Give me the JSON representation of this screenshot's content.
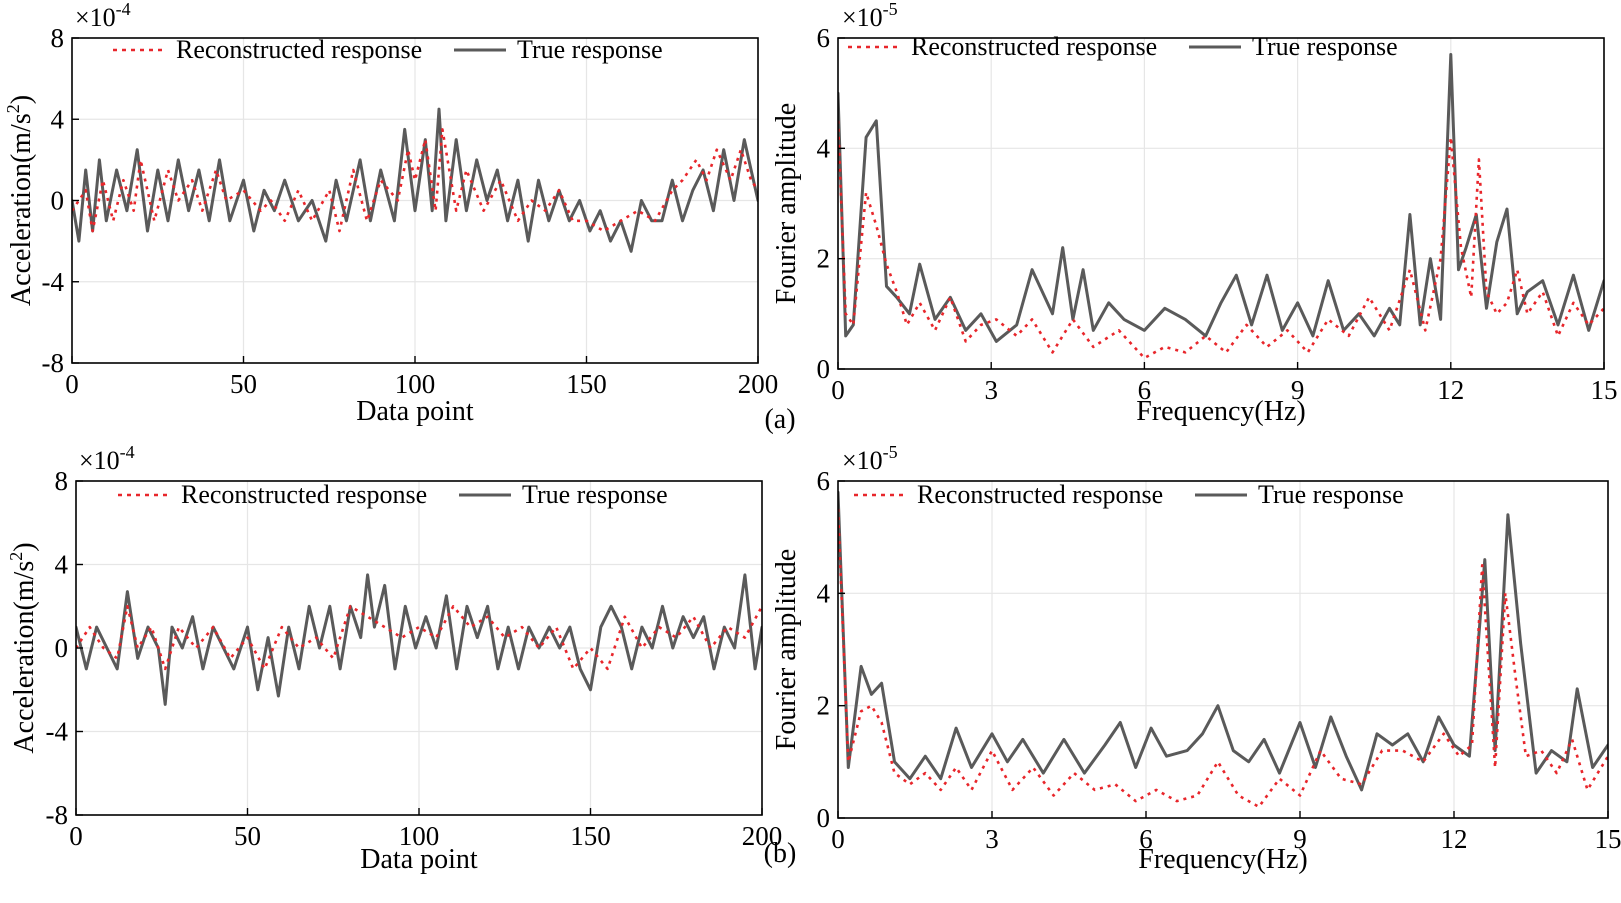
{
  "figure": {
    "panel_labels": [
      "(a)",
      "(b)"
    ],
    "series_colors": {
      "reconstructed": "#e8262b",
      "true": "#5a5a5a"
    }
  },
  "chart_data": [
    {
      "id": "a-time",
      "type": "line",
      "xlabel": "Data point",
      "ylabel": "Acceleration(m/s^2)",
      "y_multiplier": "×10^-4",
      "xlim": [
        0,
        200
      ],
      "ylim": [
        -8,
        8
      ],
      "xticks": [
        0,
        50,
        100,
        150,
        200
      ],
      "xtick_labels": [
        "0",
        "50",
        "100",
        "150",
        "200"
      ],
      "yticks": [
        -8,
        -4,
        0,
        4,
        8
      ],
      "ytick_labels": [
        "-8",
        "-4",
        "0",
        "4",
        "8"
      ],
      "grid": true,
      "legend": "top",
      "series": [
        {
          "name": "Reconstructed response",
          "style": "dotted",
          "color": "#e8262b",
          "x": [
            0,
            4,
            6,
            9,
            12,
            15,
            18,
            20,
            24,
            28,
            31,
            35,
            38,
            42,
            45,
            50,
            55,
            58,
            62,
            66,
            70,
            75,
            78,
            82,
            86,
            90,
            95,
            98,
            100,
            103,
            106,
            108,
            112,
            115,
            120,
            125,
            130,
            134,
            138,
            142,
            146,
            150,
            155,
            160,
            165,
            170,
            175,
            178,
            182,
            185,
            188,
            192,
            195,
            198,
            200
          ],
          "y": [
            -0.5,
            0.5,
            -1.5,
            1,
            -1,
            1,
            -0.5,
            2,
            -1,
            1.5,
            0,
            1,
            -0.5,
            1.5,
            0,
            0.5,
            -0.5,
            0,
            -1,
            0.5,
            -1,
            0.5,
            -1.5,
            1.5,
            -1,
            1,
            0,
            2.5,
            1,
            3,
            -0.5,
            3.5,
            -0.5,
            1.5,
            -0.5,
            1,
            -1,
            0,
            -0.5,
            0.5,
            -1,
            -1,
            -1.5,
            -1,
            -0.5,
            -1,
            0.5,
            1,
            2,
            1,
            2.5,
            1,
            2.5,
            1,
            0.5
          ]
        },
        {
          "name": "True response",
          "style": "solid",
          "color": "#5a5a5a",
          "x": [
            0,
            2,
            4,
            6,
            8,
            10,
            13,
            16,
            19,
            22,
            25,
            28,
            31,
            34,
            37,
            40,
            43,
            46,
            50,
            53,
            56,
            59,
            62,
            66,
            70,
            74,
            77,
            80,
            84,
            87,
            90,
            94,
            97,
            100,
            103,
            105,
            107,
            109,
            112,
            115,
            118,
            121,
            124,
            127,
            130,
            133,
            136,
            139,
            142,
            145,
            148,
            151,
            154,
            157,
            160,
            163,
            166,
            169,
            172,
            175,
            178,
            181,
            184,
            187,
            190,
            193,
            196,
            198,
            200
          ],
          "y": [
            0,
            -2,
            1.5,
            -1.5,
            2,
            -1,
            1.5,
            -0.5,
            2.5,
            -1.5,
            1.5,
            -1,
            2,
            -0.5,
            1.5,
            -1,
            2,
            -1,
            1,
            -1.5,
            0.5,
            -0.5,
            1,
            -1,
            0,
            -2,
            1,
            -1,
            2,
            -1,
            1.5,
            -1,
            3.5,
            -0.5,
            3,
            -0.5,
            4.5,
            -1,
            3,
            -0.5,
            2,
            0,
            1.5,
            -1,
            1,
            -2,
            1,
            -1,
            0.5,
            -1,
            0,
            -1.5,
            -0.5,
            -2,
            -1,
            -2.5,
            0,
            -1,
            -1,
            1,
            -1,
            0.5,
            1.5,
            -0.5,
            2.5,
            0,
            3,
            1.5,
            0
          ]
        }
      ]
    },
    {
      "id": "a-freq",
      "type": "line",
      "xlabel": "Frequency(Hz)",
      "ylabel": "Fourier amplitude",
      "y_multiplier": "×10^-5",
      "xlim": [
        0,
        15
      ],
      "ylim": [
        0,
        6
      ],
      "xticks": [
        0,
        3,
        6,
        9,
        12,
        15
      ],
      "xtick_labels": [
        "0",
        "3",
        "6",
        "9",
        "12",
        "15"
      ],
      "yticks": [
        0,
        2,
        4,
        6
      ],
      "ytick_labels": [
        "0",
        "2",
        "4",
        "6"
      ],
      "grid": true,
      "legend": "top",
      "series": [
        {
          "name": "Reconstructed response",
          "style": "dotted",
          "color": "#e8262b",
          "x": [
            0,
            0.15,
            0.3,
            0.55,
            0.75,
            0.95,
            1.15,
            1.35,
            1.6,
            1.9,
            2.2,
            2.5,
            2.8,
            3.1,
            3.5,
            3.8,
            4.2,
            4.6,
            5,
            5.5,
            6,
            6.4,
            6.8,
            7.2,
            7.6,
            8,
            8.4,
            8.8,
            9.2,
            9.6,
            10,
            10.4,
            10.8,
            11.2,
            11.5,
            11.8,
            12,
            12.2,
            12.4,
            12.55,
            12.7,
            12.9,
            13.1,
            13.3,
            13.5,
            13.8,
            14.1,
            14.4,
            14.7,
            15
          ],
          "y": [
            4.5,
            1,
            0.8,
            3.2,
            2.6,
            1.9,
            1.4,
            0.8,
            1.2,
            0.7,
            1.3,
            0.5,
            0.8,
            0.9,
            0.6,
            0.9,
            0.3,
            0.9,
            0.4,
            0.7,
            0.2,
            0.4,
            0.3,
            0.6,
            0.3,
            0.8,
            0.4,
            0.7,
            0.3,
            0.9,
            0.6,
            1.3,
            0.7,
            1.8,
            0.7,
            2,
            4.2,
            2.2,
            1.3,
            3.8,
            1.4,
            1,
            1.2,
            1.8,
            1,
            1.4,
            0.6,
            1.2,
            0.8,
            1.1
          ]
        },
        {
          "name": "True response",
          "style": "solid",
          "color": "#5a5a5a",
          "x": [
            0,
            0.15,
            0.3,
            0.55,
            0.75,
            0.95,
            1.15,
            1.4,
            1.6,
            1.9,
            2.2,
            2.5,
            2.8,
            3.1,
            3.5,
            3.8,
            4.2,
            4.4,
            4.6,
            4.8,
            5,
            5.3,
            5.6,
            6,
            6.4,
            6.8,
            7.2,
            7.5,
            7.8,
            8.1,
            8.4,
            8.7,
            9,
            9.3,
            9.6,
            9.9,
            10.2,
            10.5,
            10.8,
            11,
            11.2,
            11.4,
            11.6,
            11.8,
            12,
            12.15,
            12.3,
            12.5,
            12.7,
            12.9,
            13.1,
            13.3,
            13.5,
            13.8,
            14.1,
            14.4,
            14.7,
            15
          ],
          "y": [
            5,
            0.6,
            0.8,
            4.2,
            4.5,
            1.5,
            1.3,
            1,
            1.9,
            0.9,
            1.3,
            0.7,
            1,
            0.5,
            0.8,
            1.8,
            1,
            2.2,
            0.9,
            1.8,
            0.7,
            1.2,
            0.9,
            0.7,
            1.1,
            0.9,
            0.6,
            1.2,
            1.7,
            0.8,
            1.7,
            0.7,
            1.2,
            0.6,
            1.6,
            0.7,
            1,
            0.6,
            1.1,
            0.8,
            2.8,
            0.8,
            2,
            0.9,
            5.7,
            1.8,
            2.2,
            2.8,
            1.1,
            2.3,
            2.9,
            1,
            1.4,
            1.6,
            0.8,
            1.7,
            0.7,
            1.6
          ]
        }
      ]
    },
    {
      "id": "b-time",
      "type": "line",
      "xlabel": "Data point",
      "ylabel": "Acceleration(m/s^2)",
      "y_multiplier": "×10^-4",
      "xlim": [
        0,
        200
      ],
      "ylim": [
        -8,
        8
      ],
      "xticks": [
        0,
        50,
        100,
        150,
        200
      ],
      "xtick_labels": [
        "0",
        "50",
        "100",
        "150",
        "200"
      ],
      "yticks": [
        -8,
        -4,
        0,
        4,
        8
      ],
      "ytick_labels": [
        "-8",
        "-4",
        "0",
        "4",
        "8"
      ],
      "grid": true,
      "legend": "top",
      "series": [
        {
          "name": "Reconstructed response",
          "style": "dotted",
          "color": "#e8262b",
          "x": [
            0,
            4,
            8,
            12,
            15,
            18,
            22,
            26,
            30,
            35,
            40,
            45,
            50,
            55,
            60,
            65,
            70,
            75,
            80,
            85,
            90,
            95,
            100,
            105,
            110,
            115,
            120,
            125,
            130,
            135,
            140,
            145,
            150,
            155,
            160,
            165,
            170,
            175,
            180,
            185,
            190,
            195,
            200
          ],
          "y": [
            0,
            1,
            0,
            -0.5,
            2,
            0,
            1,
            -1,
            1,
            0,
            1,
            -0.5,
            0.5,
            -1,
            1,
            0,
            0.5,
            -0.5,
            2,
            1.5,
            1,
            0.5,
            1,
            0.5,
            2,
            1,
            1.5,
            0.5,
            1,
            0,
            1,
            -1,
            0,
            -1,
            1.5,
            0,
            1,
            0.5,
            1.5,
            0,
            1,
            0.5,
            2
          ]
        },
        {
          "name": "True response",
          "style": "solid",
          "color": "#5a5a5a",
          "x": [
            0,
            3,
            6,
            9,
            12,
            15,
            18,
            21,
            24,
            26,
            28,
            31,
            34,
            37,
            40,
            43,
            46,
            50,
            53,
            56,
            59,
            62,
            65,
            68,
            71,
            74,
            77,
            80,
            83,
            85,
            87,
            90,
            93,
            96,
            99,
            102,
            105,
            108,
            111,
            114,
            117,
            120,
            123,
            126,
            129,
            132,
            135,
            138,
            141,
            144,
            147,
            150,
            153,
            156,
            159,
            162,
            165,
            168,
            171,
            174,
            177,
            180,
            183,
            186,
            189,
            192,
            195,
            198,
            200
          ],
          "y": [
            1,
            -1,
            1,
            0,
            -1,
            2.7,
            -0.5,
            1,
            0,
            -2.7,
            1,
            0,
            1.5,
            -1,
            1,
            0,
            -1,
            1,
            -2,
            0.5,
            -2.3,
            1,
            -1,
            2,
            0,
            2,
            -1,
            2,
            0.5,
            3.5,
            1,
            3,
            -1,
            2,
            0,
            1.5,
            0,
            2.5,
            -1,
            2,
            0.5,
            2,
            -1,
            1,
            -1,
            1,
            0,
            1,
            0,
            1,
            -1,
            -2,
            1,
            2,
            1,
            -1,
            1,
            0,
            2,
            0,
            1.5,
            0.5,
            1.5,
            -1,
            1,
            0,
            3.5,
            -1,
            1
          ]
        }
      ]
    },
    {
      "id": "b-freq",
      "type": "line",
      "xlabel": "Frequency(Hz)",
      "ylabel": "Fourier amplitude",
      "y_multiplier": "×10^-5",
      "xlim": [
        0,
        15
      ],
      "ylim": [
        0,
        6
      ],
      "xticks": [
        0,
        3,
        6,
        9,
        12,
        15
      ],
      "xtick_labels": [
        "0",
        "3",
        "6",
        "9",
        "12",
        "15"
      ],
      "yticks": [
        0,
        2,
        4,
        6
      ],
      "ytick_labels": [
        "0",
        "2",
        "4",
        "6"
      ],
      "grid": true,
      "legend": "top",
      "series": [
        {
          "name": "Reconstructed response",
          "style": "dotted",
          "color": "#e8262b",
          "x": [
            0,
            0.2,
            0.45,
            0.65,
            0.85,
            1.1,
            1.4,
            1.7,
            2,
            2.3,
            2.6,
            3,
            3.4,
            3.8,
            4.2,
            4.6,
            5,
            5.4,
            5.8,
            6.2,
            6.6,
            7,
            7.4,
            7.8,
            8.2,
            8.6,
            9,
            9.4,
            9.8,
            10.2,
            10.6,
            11,
            11.4,
            11.8,
            12.1,
            12.35,
            12.55,
            12.8,
            13,
            13.2,
            13.4,
            13.7,
            14,
            14.3,
            14.6,
            15
          ],
          "y": [
            5.5,
            1,
            1.9,
            2,
            1.7,
            0.8,
            0.6,
            0.8,
            0.5,
            0.9,
            0.5,
            1.2,
            0.5,
            0.9,
            0.4,
            0.8,
            0.5,
            0.6,
            0.3,
            0.5,
            0.3,
            0.4,
            1,
            0.4,
            0.2,
            0.7,
            0.4,
            1.2,
            0.7,
            0.6,
            1.2,
            1.2,
            1,
            1.5,
            1.1,
            1.3,
            4.5,
            0.9,
            4,
            2.5,
            1.1,
            1.2,
            0.8,
            1.4,
            0.5,
            1.1
          ]
        },
        {
          "name": "True response",
          "style": "solid",
          "color": "#5a5a5a",
          "x": [
            0,
            0.2,
            0.45,
            0.65,
            0.85,
            1.1,
            1.4,
            1.7,
            2,
            2.3,
            2.6,
            3,
            3.3,
            3.6,
            4,
            4.4,
            4.8,
            5.2,
            5.5,
            5.8,
            6.1,
            6.4,
            6.8,
            7.1,
            7.4,
            7.7,
            8,
            8.3,
            8.6,
            9,
            9.3,
            9.6,
            9.9,
            10.2,
            10.5,
            10.8,
            11.1,
            11.4,
            11.7,
            12,
            12.3,
            12.6,
            12.8,
            13.05,
            13.3,
            13.6,
            13.9,
            14.2,
            14.4,
            14.7,
            15
          ],
          "y": [
            5.8,
            0.9,
            2.7,
            2.2,
            2.4,
            1,
            0.7,
            1.1,
            0.7,
            1.6,
            0.9,
            1.5,
            1,
            1.4,
            0.8,
            1.4,
            0.8,
            1.3,
            1.7,
            0.9,
            1.6,
            1.1,
            1.2,
            1.5,
            2,
            1.2,
            1,
            1.4,
            0.8,
            1.7,
            0.9,
            1.8,
            1.1,
            0.5,
            1.5,
            1.3,
            1.5,
            1,
            1.8,
            1.3,
            1.1,
            4.6,
            1.2,
            5.4,
            3.1,
            0.8,
            1.2,
            1,
            2.3,
            0.9,
            1.3
          ]
        }
      ]
    }
  ]
}
